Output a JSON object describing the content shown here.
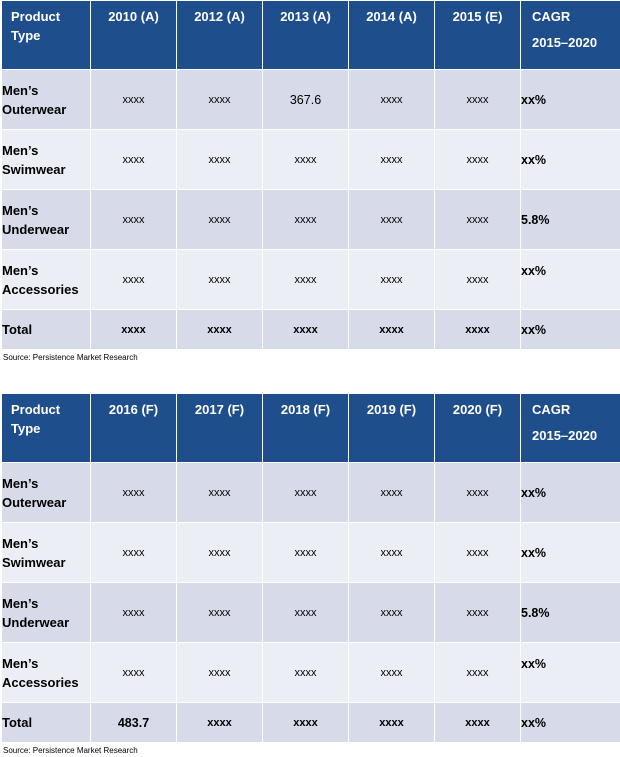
{
  "tables": [
    {
      "headers": [
        "Product Type",
        "2010 (A)",
        "2012 (A)",
        "2013  (A)",
        "2014 (A)",
        "2015 (E)",
        "CAGR",
        "2015–2020"
      ],
      "rows": [
        {
          "name": [
            "Men’s",
            "Outerwear"
          ],
          "values": [
            "xxxx",
            "xxxx",
            "367.6",
            "xxxx",
            "xxxx"
          ],
          "cagr": "xx%"
        },
        {
          "name": [
            "Men’s",
            "Swimwear"
          ],
          "values": [
            "xxxx",
            "xxxx",
            "xxxx",
            "xxxx",
            "xxxx"
          ],
          "cagr": "xx%"
        },
        {
          "name": [
            "Men’s",
            "Underwear"
          ],
          "values": [
            "xxxx",
            "xxxx",
            "xxxx",
            "xxxx",
            "xxxx"
          ],
          "cagr": "5.8%"
        },
        {
          "name": [
            "Men’s",
            "Accessories"
          ],
          "values": [
            "xxxx",
            "xxxx",
            "xxxx",
            "xxxx",
            "xxxx"
          ],
          "cagr": "xx%"
        },
        {
          "name": [
            "Total"
          ],
          "values": [
            "xxxx",
            "xxxx",
            "xxxx",
            "xxxx",
            "xxxx"
          ],
          "cagr": "xx%"
        }
      ],
      "source": "Source: Persistence Market Research"
    },
    {
      "headers": [
        "Product Type",
        "2016 (F)",
        "2017 (F)",
        "2018 (F)",
        "2019 (F)",
        "2020 (F)",
        "CAGR",
        "2015–2020"
      ],
      "rows": [
        {
          "name": [
            "Men’s",
            "Outerwear"
          ],
          "values": [
            "xxxx",
            "xxxx",
            "xxxx",
            "xxxx",
            "xxxx"
          ],
          "cagr": "xx%"
        },
        {
          "name": [
            "Men’s",
            "Swimwear"
          ],
          "values": [
            "xxxx",
            "xxxx",
            "xxxx",
            "xxxx",
            "xxxx"
          ],
          "cagr": "xx%"
        },
        {
          "name": [
            "Men’s",
            "Underwear"
          ],
          "values": [
            "xxxx",
            "xxxx",
            "xxxx",
            "xxxx",
            "xxxx"
          ],
          "cagr": "5.8%"
        },
        {
          "name": [
            "Men’s",
            "Accessories"
          ],
          "values": [
            "xxxx",
            "xxxx",
            "xxxx",
            "xxxx",
            "xxxx"
          ],
          "cagr": "xx%"
        },
        {
          "name": [
            "Total"
          ],
          "values": [
            "483.7",
            "xxxx",
            "xxxx",
            "xxxx",
            "xxxx"
          ],
          "cagr": "xx%"
        }
      ],
      "source": "Source: Persistence Market Research"
    }
  ]
}
